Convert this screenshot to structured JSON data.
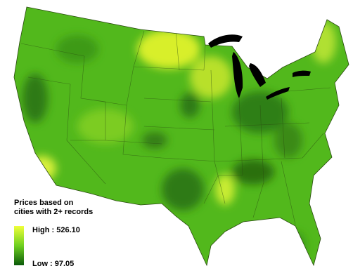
{
  "legend": {
    "title": [
      "Prices based on",
      "cities with 2+ records"
    ],
    "high": "High : 526.10",
    "low": "Low : 97.05"
  }
}
